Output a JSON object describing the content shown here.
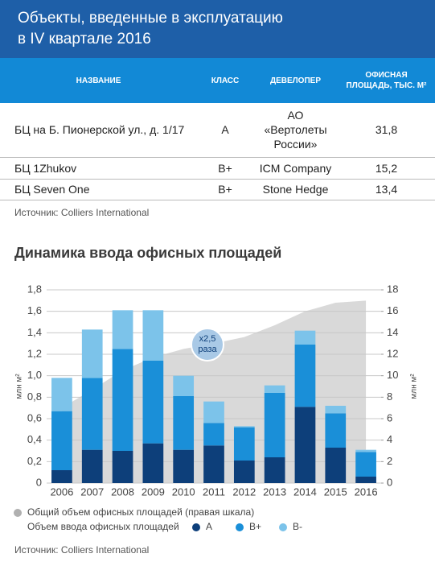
{
  "header": {
    "title_lines": [
      "Объекты, введенные в эксплуатацию",
      "в IV квартале 2016"
    ]
  },
  "table": {
    "columns": [
      "НАЗВАНИЕ",
      "КЛАСС",
      "ДЕВЕЛОПЕР",
      "ОФИСНАЯ ПЛОЩАДЬ, ТЫС. М²"
    ],
    "rows": [
      [
        "БЦ на Б. Пионерской ул., д. 1/17",
        "А",
        "АО «Вертолеты России»",
        "31,8"
      ],
      [
        "БЦ 1Zhukov",
        "B+",
        "ICM Company",
        "15,2"
      ],
      [
        "БЦ Seven One",
        "B+",
        "Stone Hedge",
        "13,4"
      ]
    ],
    "source": "Источник: Colliers International"
  },
  "chart_data": {
    "type": "bar",
    "stacked": true,
    "title": "Динамика ввода офисных площадей",
    "categories": [
      "2006",
      "2007",
      "2008",
      "2009",
      "2010",
      "2011",
      "2012",
      "2013",
      "2014",
      "2015",
      "2016"
    ],
    "series": [
      {
        "name": "А",
        "color": "#0d3f7a",
        "values": [
          0.12,
          0.31,
          0.3,
          0.37,
          0.31,
          0.35,
          0.21,
          0.24,
          0.71,
          0.33,
          0.06
        ]
      },
      {
        "name": "B+",
        "color": "#1a8fd8",
        "values": [
          0.55,
          0.67,
          0.95,
          0.77,
          0.5,
          0.21,
          0.31,
          0.6,
          0.58,
          0.32,
          0.23
        ]
      },
      {
        "name": "B-",
        "color": "#7cc3ea",
        "values": [
          0.31,
          0.45,
          0.36,
          0.47,
          0.19,
          0.2,
          0.01,
          0.07,
          0.13,
          0.07,
          0.02
        ]
      },
      {
        "name": "Общий объем офисных площадей (правая шкала)",
        "type": "area",
        "axis": "y2",
        "color": "#d9d9d9",
        "legend_color": "#b0b0b0",
        "values": [
          7.0,
          8.7,
          10.5,
          11.7,
          12.5,
          13.0,
          13.6,
          14.7,
          16.0,
          16.8,
          17.0
        ]
      }
    ],
    "legend_title": "Объем ввода офисных площадей",
    "ylabel": "млн м²",
    "y2label": "млн м²",
    "ylim": [
      0,
      1.8
    ],
    "yticks": [
      0,
      {
        "value": 0.2,
        "label": "0,2"
      },
      {
        "value": 0.4,
        "label": "0,4"
      },
      {
        "value": 0.6,
        "label": "0,6"
      },
      {
        "value": 0.8,
        "label": "0,8"
      },
      {
        "value": 1.0,
        "label": "1,0"
      },
      {
        "value": 1.2,
        "label": "1,2"
      },
      {
        "value": 1.4,
        "label": "1,4"
      },
      {
        "value": 1.6,
        "label": "1,6"
      },
      {
        "value": 1.8,
        "label": "1,8"
      }
    ],
    "y2lim": [
      0,
      18
    ],
    "y2ticks": [
      0,
      2,
      4,
      6,
      8,
      10,
      12,
      14,
      16,
      18
    ],
    "grid": true,
    "annotation": [
      "x2,5",
      "раза"
    ],
    "source": "Источник: Colliers International"
  }
}
